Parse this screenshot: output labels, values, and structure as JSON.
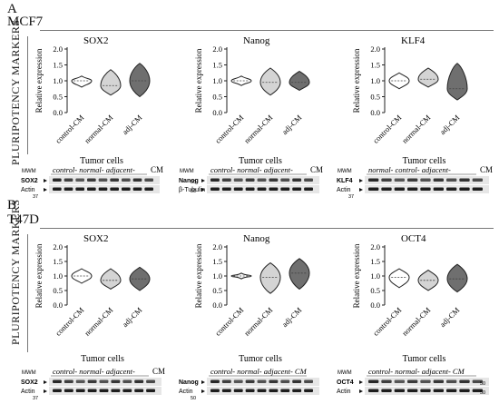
{
  "panels": [
    {
      "letter": "A",
      "cell_line": "MCF7",
      "side_label": "PLURIPOTENCY MARKERS",
      "groups": [
        "control-CM",
        "normal-CM",
        "adj-CM"
      ],
      "charts": [
        {
          "title": "SOX2",
          "ylabel": "Relative expression",
          "yticks": [
            "0.0",
            "0.5",
            "1.0",
            "1.5",
            "2.0"
          ],
          "blot": {
            "header": "Tumor cells",
            "groups_line": "control-  normal-  adjacent-",
            "cm": "CM",
            "mwm": "MWM",
            "rows": [
              "SOX2",
              "Actin"
            ],
            "markers": [
              "37"
            ]
          }
        },
        {
          "title": "Nanog",
          "ylabel": "Relative expression",
          "yticks": [
            "0.0",
            "0.5",
            "1.0",
            "1.5",
            "2.0"
          ],
          "blot": {
            "header": "Tumor cells",
            "groups_line": "control-  normal-  adjacent-",
            "cm": "CM",
            "mwm": "MWM",
            "rows": [
              "Nanog",
              "β-Tubulin"
            ],
            "markers": [
              "50",
              "50"
            ]
          }
        },
        {
          "title": "KLF4",
          "ylabel": "Relative expression",
          "yticks": [
            "0.0",
            "0.5",
            "1.0",
            "1.5",
            "2.0"
          ],
          "blot": {
            "header": "Tumor cells",
            "groups_line": "normal-  control-  adjacent-",
            "cm": "CM",
            "mwm": "MWM",
            "rows": [
              "KLF4",
              "Actin"
            ],
            "markers": [
              "37"
            ]
          }
        }
      ]
    },
    {
      "letter": "B",
      "cell_line": "T47D",
      "side_label": "PLURIPOTENCY MARKERS",
      "groups": [
        "control-CM",
        "normal-CM",
        "adj-CM"
      ],
      "charts": [
        {
          "title": "SOX2",
          "ylabel": "Relative expression",
          "yticks": [
            "0.0",
            "0.5",
            "1.0",
            "1.5",
            "2.0"
          ],
          "blot": {
            "header": "Tumor cells",
            "groups_line": "control-  normal-  adjacent-",
            "cm": "CM",
            "mwm": "MWM",
            "rows": [
              "SOX2",
              "Actin"
            ],
            "markers": [
              "37"
            ]
          }
        },
        {
          "title": "Nanog",
          "ylabel": "Relative expression",
          "yticks": [
            "0.0",
            "0.5",
            "1.0",
            "1.5",
            "2.0"
          ],
          "blot": {
            "header": "Tumor cells",
            "groups_line": "control-  normal-  adjacent- CM",
            "cm": "",
            "mwm": "",
            "rows": [
              "Nanog",
              "Actin"
            ],
            "markers": [
              "50"
            ]
          }
        },
        {
          "title": "OCT4",
          "ylabel": "Relative expression",
          "yticks": [
            "0.0",
            "0.5",
            "1.0",
            "1.5",
            "2.0"
          ],
          "blot": {
            "header": "Tumor cells",
            "groups_line": "control-  normal-  adjacent- CM",
            "cm": "",
            "mwm": "MWM",
            "rows": [
              "OCT4",
              "Actin"
            ],
            "markers": [
              "50",
              "50"
            ]
          }
        }
      ]
    }
  ],
  "chart_data": [
    {
      "type": "violin",
      "panel": "A",
      "title": "SOX2",
      "ylabel": "Relative expression",
      "ylim": [
        0,
        2
      ],
      "categories": [
        "control-CM",
        "normal-CM",
        "adj-CM"
      ],
      "series": [
        {
          "median": [
            1.0,
            0.85,
            1.0
          ],
          "min": [
            0.8,
            0.55,
            0.5
          ],
          "max": [
            1.15,
            1.35,
            1.55
          ],
          "fill": [
            "#ffffff",
            "#d4d4d4",
            "#6f6f6f"
          ]
        }
      ]
    },
    {
      "type": "violin",
      "panel": "A",
      "title": "Nanog",
      "ylabel": "Relative expression",
      "ylim": [
        0,
        2
      ],
      "categories": [
        "control-CM",
        "normal-CM",
        "adj-CM"
      ],
      "series": [
        {
          "median": [
            1.0,
            0.95,
            0.95
          ],
          "min": [
            0.85,
            0.55,
            0.7
          ],
          "max": [
            1.15,
            1.4,
            1.3
          ],
          "fill": [
            "#ffffff",
            "#d4d4d4",
            "#6f6f6f"
          ]
        }
      ]
    },
    {
      "type": "violin",
      "panel": "A",
      "title": "KLF4",
      "ylabel": "Relative expression",
      "ylim": [
        0,
        2
      ],
      "categories": [
        "control-CM",
        "normal-CM",
        "adj-CM"
      ],
      "series": [
        {
          "median": [
            1.0,
            1.05,
            0.75
          ],
          "min": [
            0.75,
            0.8,
            0.4
          ],
          "max": [
            1.25,
            1.4,
            1.55
          ],
          "fill": [
            "#ffffff",
            "#d4d4d4",
            "#6f6f6f"
          ]
        }
      ]
    },
    {
      "type": "violin",
      "panel": "B",
      "title": "SOX2",
      "ylabel": "Relative expression",
      "ylim": [
        0,
        2
      ],
      "categories": [
        "control-CM",
        "normal-CM",
        "adj-CM"
      ],
      "series": [
        {
          "median": [
            1.0,
            0.85,
            0.9
          ],
          "min": [
            0.75,
            0.55,
            0.5
          ],
          "max": [
            1.25,
            1.25,
            1.3
          ],
          "fill": [
            "#ffffff",
            "#d4d4d4",
            "#6f6f6f"
          ]
        }
      ]
    },
    {
      "type": "violin",
      "panel": "B",
      "title": "Nanog",
      "ylabel": "Relative expression",
      "ylim": [
        0,
        2
      ],
      "categories": [
        "control-CM",
        "normal-CM",
        "adj-CM"
      ],
      "series": [
        {
          "median": [
            1.0,
            0.95,
            1.1
          ],
          "min": [
            0.9,
            0.4,
            0.55
          ],
          "max": [
            1.1,
            1.45,
            1.6
          ],
          "fill": [
            "#ffffff",
            "#d4d4d4",
            "#6f6f6f"
          ]
        }
      ]
    },
    {
      "type": "violin",
      "panel": "B",
      "title": "OCT4",
      "ylabel": "Relative expression",
      "ylim": [
        0,
        2
      ],
      "categories": [
        "control-CM",
        "normal-CM",
        "adj-CM"
      ],
      "series": [
        {
          "median": [
            0.95,
            0.85,
            0.9
          ],
          "min": [
            0.6,
            0.5,
            0.45
          ],
          "max": [
            1.25,
            1.2,
            1.4
          ],
          "fill": [
            "#ffffff",
            "#d4d4d4",
            "#6f6f6f"
          ]
        }
      ]
    }
  ]
}
